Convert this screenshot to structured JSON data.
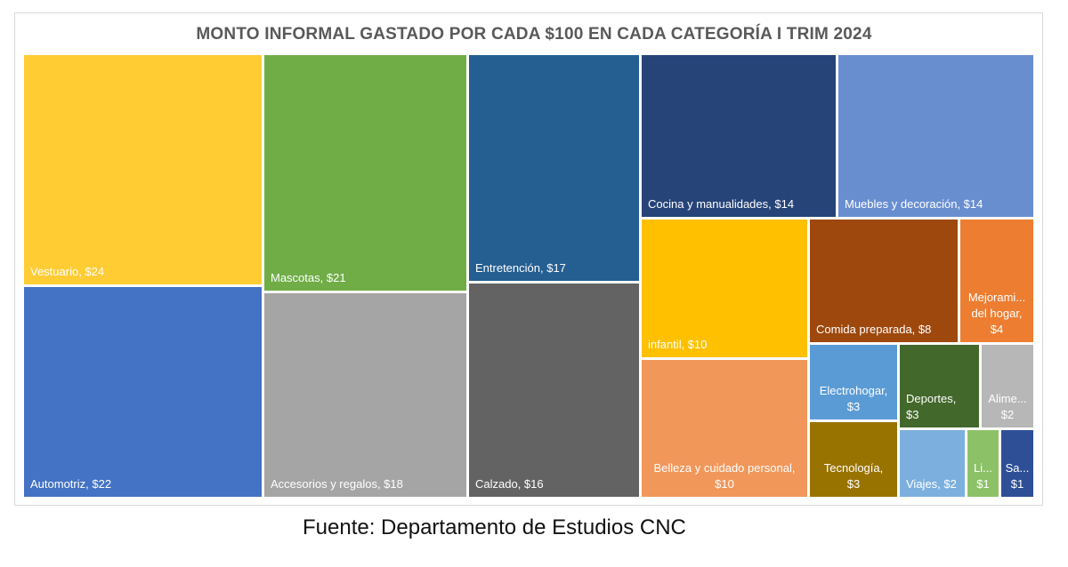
{
  "chart_data": {
    "type": "treemap",
    "title": "MONTO INFORMAL GASTADO POR CADA $100 EN CADA CATEGORÍA I TRIM 2024",
    "items": [
      {
        "label": "Vestuario,  $24",
        "value": 24,
        "color": "#FFCC33",
        "text_color": "#ffffff"
      },
      {
        "label": "Automotriz,  $22",
        "value": 22,
        "color": "#4472C4",
        "text_color": "#ffffff"
      },
      {
        "label": "Mascotas,  $21",
        "value": 21,
        "color": "#70AD47",
        "text_color": "#ffffff"
      },
      {
        "label": "Accesorios y regalos,  $18",
        "value": 18,
        "color": "#A5A5A5",
        "text_color": "#ffffff"
      },
      {
        "label": "Entretención,  $17",
        "value": 17,
        "color": "#255E91",
        "text_color": "#ffffff"
      },
      {
        "label": "Calzado,  $16",
        "value": 16,
        "color": "#636363",
        "text_color": "#ffffff"
      },
      {
        "label": "Cocina y manualidades,  $14",
        "value": 14,
        "color": "#264478",
        "text_color": "#ffffff"
      },
      {
        "label": "Muebles y decoración,  $14",
        "value": 14,
        "color": "#698ED0",
        "text_color": "#ffffff"
      },
      {
        "label": "infantil,  $10",
        "value": 10,
        "color": "#FFC000",
        "text_color": "#ffffff"
      },
      {
        "label": "Belleza y cuidado personal,\n$10",
        "value": 10,
        "color": "#F1975A",
        "text_color": "#ffffff"
      },
      {
        "label": "Comida preparada,  $8",
        "value": 8,
        "color": "#9E480E",
        "text_color": "#ffffff"
      },
      {
        "label": "Mejorami...\ndel hogar,\n$4",
        "value": 4,
        "color": "#ED7D31",
        "text_color": "#ffffff"
      },
      {
        "label": "Electrohogar,\n$3",
        "value": 3,
        "color": "#5B9BD5",
        "text_color": "#ffffff"
      },
      {
        "label": "Deportes,\n$3",
        "value": 3,
        "color": "#43682B",
        "text_color": "#ffffff"
      },
      {
        "label": "Alime...\n$2",
        "value": 2,
        "color": "#B7B7B7",
        "text_color": "#ffffff"
      },
      {
        "label": "Tecnología,\n$3",
        "value": 3,
        "color": "#997300",
        "text_color": "#ffffff"
      },
      {
        "label": "Viajes,  $2",
        "value": 2,
        "color": "#7CAFDD",
        "text_color": "#ffffff"
      },
      {
        "label": "Li...\n$1",
        "value": 1,
        "color": "#8CC168",
        "text_color": "#ffffff"
      },
      {
        "label": "Sa...\n$1",
        "value": 1,
        "color": "#2E4F96",
        "text_color": "#ffffff"
      }
    ]
  },
  "footer": {
    "source": "Fuente: Departamento de Estudios CNC"
  }
}
